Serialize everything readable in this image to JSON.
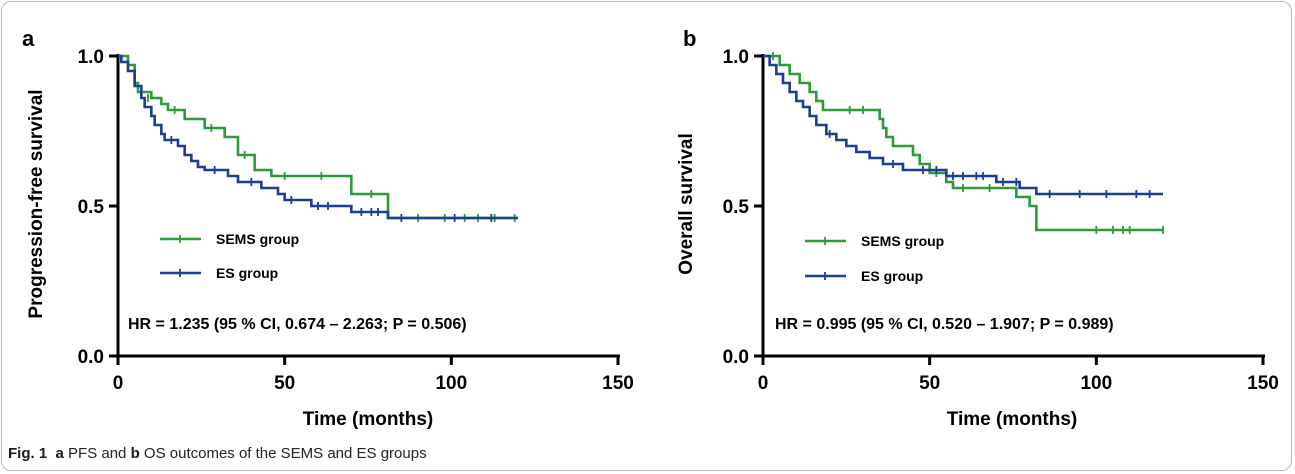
{
  "caption": {
    "label": "Fig. 1",
    "a_letter": "a",
    "text_1": "PFS and",
    "b_letter": "b",
    "text_2": "OS outcomes of the SEMS and ES groups"
  },
  "colors": {
    "sems": "#2e9a3a",
    "es": "#1c3e93",
    "axis": "#000000"
  },
  "chart_data": [
    {
      "panel": "a",
      "type": "line",
      "subtype": "kaplan-meier-step",
      "xlabel": "Time (months)",
      "ylabel": "Progression-free survival",
      "xlim": [
        0,
        150
      ],
      "ylim": [
        0.0,
        1.0
      ],
      "xticks": [
        0,
        50,
        100,
        150
      ],
      "yticks": [
        0.0,
        0.5,
        1.0
      ],
      "ytick_labels": [
        "0.0",
        "0.5",
        "1.0"
      ],
      "grid": false,
      "legend_position": "lower-left",
      "annotation": "HR = 1.235 (95 % CI, 0.674 – 2.263; P = 0.506)",
      "series": [
        {
          "name": "SEMS group",
          "color_key": "sems",
          "points": [
            [
              0,
              1.0
            ],
            [
              3,
              0.97
            ],
            [
              5,
              0.91
            ],
            [
              6,
              0.88
            ],
            [
              10,
              0.86
            ],
            [
              13,
              0.84
            ],
            [
              15,
              0.82
            ],
            [
              20,
              0.79
            ],
            [
              26,
              0.76
            ],
            [
              32,
              0.73
            ],
            [
              36,
              0.67
            ],
            [
              41,
              0.62
            ],
            [
              46,
              0.6
            ],
            [
              70,
              0.54
            ],
            [
              81,
              0.46
            ],
            [
              120,
              0.46
            ]
          ],
          "censored": [
            [
              9,
              0.86
            ],
            [
              17,
              0.82
            ],
            [
              28,
              0.76
            ],
            [
              38,
              0.67
            ],
            [
              50,
              0.6
            ],
            [
              61,
              0.6
            ],
            [
              76,
              0.54
            ],
            [
              90,
              0.46
            ],
            [
              98,
              0.46
            ],
            [
              104,
              0.46
            ],
            [
              108,
              0.46
            ],
            [
              113,
              0.46
            ],
            [
              119,
              0.46
            ]
          ]
        },
        {
          "name": "ES group",
          "color_key": "es",
          "points": [
            [
              0,
              1.0
            ],
            [
              1,
              0.98
            ],
            [
              3,
              0.95
            ],
            [
              5,
              0.9
            ],
            [
              7,
              0.86
            ],
            [
              8,
              0.83
            ],
            [
              10,
              0.8
            ],
            [
              11,
              0.77
            ],
            [
              13,
              0.74
            ],
            [
              14,
              0.72
            ],
            [
              18,
              0.7
            ],
            [
              20,
              0.67
            ],
            [
              22,
              0.65
            ],
            [
              24,
              0.63
            ],
            [
              26,
              0.62
            ],
            [
              33,
              0.6
            ],
            [
              36,
              0.58
            ],
            [
              43,
              0.56
            ],
            [
              48,
              0.54
            ],
            [
              50,
              0.52
            ],
            [
              56,
              0.52
            ],
            [
              58,
              0.5
            ],
            [
              68,
              0.5
            ],
            [
              70,
              0.48
            ],
            [
              81,
              0.46
            ],
            [
              120,
              0.46
            ]
          ],
          "censored": [
            [
              16,
              0.72
            ],
            [
              29,
              0.62
            ],
            [
              40,
              0.58
            ],
            [
              52,
              0.52
            ],
            [
              60,
              0.5
            ],
            [
              63,
              0.5
            ],
            [
              73,
              0.48
            ],
            [
              76,
              0.48
            ],
            [
              78,
              0.48
            ],
            [
              85,
              0.46
            ],
            [
              101,
              0.46
            ],
            [
              112,
              0.46
            ]
          ]
        }
      ]
    },
    {
      "panel": "b",
      "type": "line",
      "subtype": "kaplan-meier-step",
      "xlabel": "Time (months)",
      "ylabel": "Overall survival",
      "xlim": [
        0,
        150
      ],
      "ylim": [
        0.0,
        1.0
      ],
      "xticks": [
        0,
        50,
        100,
        150
      ],
      "yticks": [
        0.0,
        0.5,
        1.0
      ],
      "ytick_labels": [
        "0.0",
        "0.5",
        "1.0"
      ],
      "grid": false,
      "legend_position": "lower-left",
      "annotation": "HR = 0.995 (95 % CI, 0.520 – 1.907; P = 0.989)",
      "series": [
        {
          "name": "SEMS group",
          "color_key": "sems",
          "points": [
            [
              0,
              1.0
            ],
            [
              4,
              1.0
            ],
            [
              5,
              0.97
            ],
            [
              8,
              0.94
            ],
            [
              11,
              0.91
            ],
            [
              14,
              0.88
            ],
            [
              16,
              0.85
            ],
            [
              18,
              0.82
            ],
            [
              35,
              0.79
            ],
            [
              36,
              0.76
            ],
            [
              37,
              0.73
            ],
            [
              39,
              0.7
            ],
            [
              45,
              0.67
            ],
            [
              47,
              0.64
            ],
            [
              50,
              0.61
            ],
            [
              55,
              0.58
            ],
            [
              57,
              0.56
            ],
            [
              76,
              0.53
            ],
            [
              80,
              0.5
            ],
            [
              82,
              0.42
            ],
            [
              120,
              0.42
            ]
          ],
          "censored": [
            [
              3,
              1.0
            ],
            [
              26,
              0.82
            ],
            [
              30,
              0.82
            ],
            [
              52,
              0.61
            ],
            [
              60,
              0.56
            ],
            [
              68,
              0.56
            ],
            [
              100,
              0.42
            ],
            [
              105,
              0.42
            ],
            [
              108,
              0.42
            ],
            [
              110,
              0.42
            ],
            [
              120,
              0.42
            ]
          ]
        },
        {
          "name": "ES group",
          "color_key": "es",
          "points": [
            [
              0,
              1.0
            ],
            [
              2,
              0.97
            ],
            [
              4,
              0.94
            ],
            [
              6,
              0.91
            ],
            [
              8,
              0.88
            ],
            [
              10,
              0.85
            ],
            [
              12,
              0.83
            ],
            [
              14,
              0.8
            ],
            [
              16,
              0.77
            ],
            [
              19,
              0.74
            ],
            [
              22,
              0.72
            ],
            [
              25,
              0.7
            ],
            [
              28,
              0.68
            ],
            [
              32,
              0.66
            ],
            [
              36,
              0.64
            ],
            [
              42,
              0.62
            ],
            [
              55,
              0.6
            ],
            [
              70,
              0.58
            ],
            [
              77,
              0.56
            ],
            [
              82,
              0.54
            ],
            [
              120,
              0.54
            ]
          ],
          "censored": [
            [
              20,
              0.74
            ],
            [
              39,
              0.64
            ],
            [
              48,
              0.62
            ],
            [
              52,
              0.62
            ],
            [
              57,
              0.6
            ],
            [
              60,
              0.6
            ],
            [
              64,
              0.6
            ],
            [
              66,
              0.6
            ],
            [
              72,
              0.58
            ],
            [
              76,
              0.58
            ],
            [
              86,
              0.54
            ],
            [
              95,
              0.54
            ],
            [
              103,
              0.54
            ],
            [
              112,
              0.54
            ],
            [
              116,
              0.54
            ]
          ]
        }
      ]
    }
  ]
}
